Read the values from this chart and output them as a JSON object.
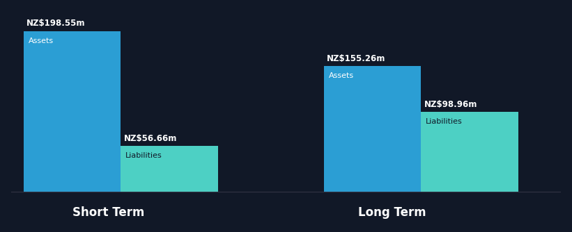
{
  "background_color": "#111827",
  "bar_color_assets": "#2B9ED4",
  "bar_color_liabilities": "#4DD0C4",
  "text_color_white": "#FFFFFF",
  "text_color_dark": "#111827",
  "short_term": {
    "label": "Short Term",
    "assets_value": 198.55,
    "assets_label": "Assets",
    "liabilities_value": 56.66,
    "liabilities_label": "Liabilities"
  },
  "long_term": {
    "label": "Long Term",
    "assets_value": 155.26,
    "assets_label": "Assets",
    "liabilities_value": 98.96,
    "liabilities_label": "Liabilities"
  },
  "max_value": 198.55,
  "figsize": [
    8.21,
    3.34
  ],
  "dpi": 100
}
